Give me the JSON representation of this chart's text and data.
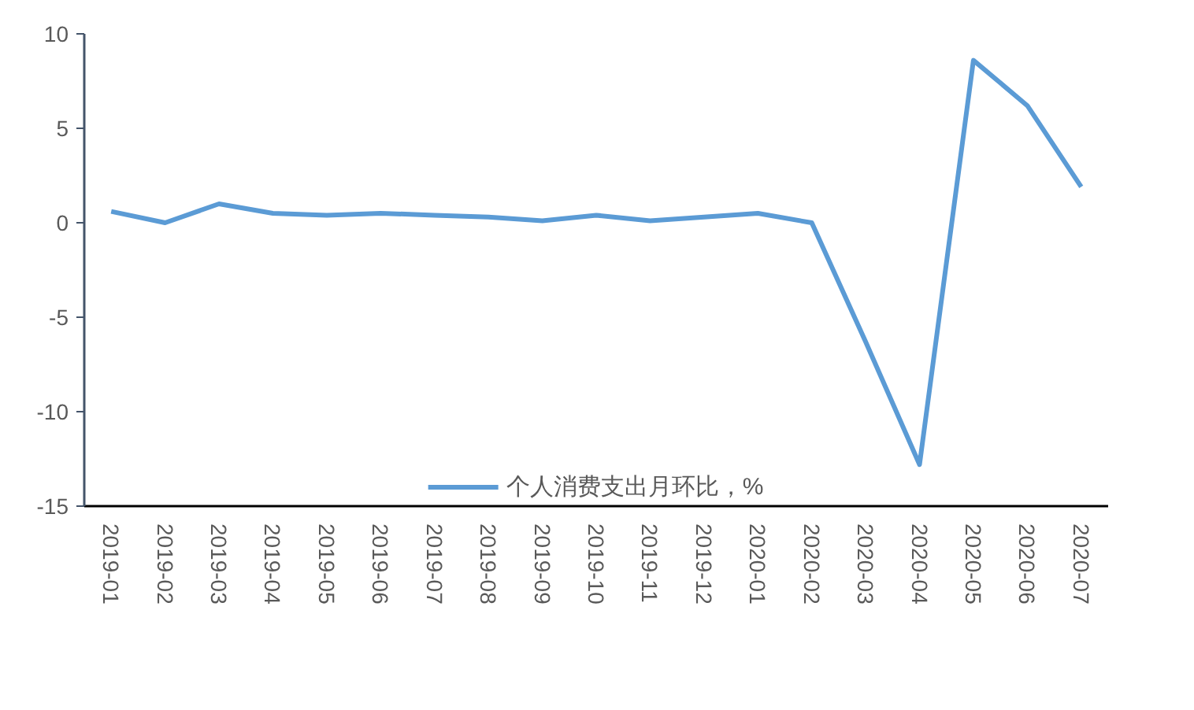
{
  "chart_data": {
    "type": "line",
    "categories": [
      "2019-01",
      "2019-02",
      "2019-03",
      "2019-04",
      "2019-05",
      "2019-06",
      "2019-07",
      "2019-08",
      "2019-09",
      "2019-10",
      "2019-11",
      "2019-12",
      "2020-01",
      "2020-02",
      "2020-03",
      "2020-04",
      "2020-05",
      "2020-06",
      "2020-07"
    ],
    "series": [
      {
        "name": "个人消费支出月环比，%",
        "color": "#5b9bd5",
        "values": [
          0.6,
          0.0,
          1.0,
          0.5,
          0.4,
          0.5,
          0.4,
          0.3,
          0.1,
          0.4,
          0.1,
          0.3,
          0.5,
          0.0,
          -6.3,
          -12.8,
          8.6,
          6.2,
          1.9
        ]
      }
    ],
    "ylim": [
      -15,
      10
    ],
    "yticks": [
      -15,
      -10,
      -5,
      0,
      5,
      10
    ],
    "grid": false,
    "legend": "bottom",
    "marker": "none",
    "line_style": "solid"
  }
}
